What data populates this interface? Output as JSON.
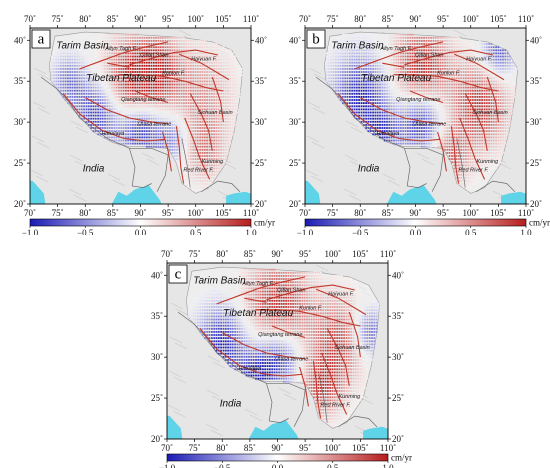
{
  "axes": {
    "x_ticks": [
      "70˚",
      "75˚",
      "80˚",
      "85˚",
      "90˚",
      "95˚",
      "100˚",
      "105˚",
      "110˚"
    ],
    "y_ticks": [
      "20˚",
      "25˚",
      "30˚",
      "35˚",
      "40˚"
    ],
    "lon_range": [
      70,
      110
    ],
    "lat_range": [
      20,
      41.5
    ]
  },
  "colorbar": {
    "ticks": [
      "−1.0",
      "−0.5",
      "0.0",
      "0.5",
      "1.0"
    ],
    "values": [
      -1.0,
      -0.5,
      0.0,
      0.5,
      1.0
    ],
    "unit": "cm/yr",
    "low_color": "#1a1ab5",
    "mid_color": "#ffffff",
    "high_color": "#b71d1d"
  },
  "colors": {
    "ocean": "#5fd3e8",
    "terrain": "#e6e6e6",
    "fault": "#c0392b",
    "boundary": "#6b6b6b"
  },
  "labels": {
    "big": [
      {
        "text": "Tarim Basin",
        "lon": 79.5,
        "lat": 39.0
      },
      {
        "text": "Tibetan Plateau",
        "lon": 86.5,
        "lat": 35.0
      },
      {
        "text": "India",
        "lon": 81.5,
        "lat": 24.0
      }
    ],
    "small": [
      {
        "text": "Altyn Tagh F.",
        "lon": 86.5,
        "lat": 38.8
      },
      {
        "text": "Qilian Shan",
        "lon": 92.5,
        "lat": 38.0
      },
      {
        "text": "Haiyuan F.",
        "lon": 101.5,
        "lat": 37.5
      },
      {
        "text": "Kunlun F.",
        "lon": 96.0,
        "lat": 35.8
      },
      {
        "text": "Qiangtang terrane",
        "lon": 90.5,
        "lat": 32.6
      },
      {
        "text": "Lhasa terrane",
        "lon": 92.5,
        "lat": 29.6
      },
      {
        "text": "Himalaya",
        "lon": 85.0,
        "lat": 28.4
      },
      {
        "text": "Sichuan Basin",
        "lon": 103.5,
        "lat": 31.0
      },
      {
        "text": "Kunming",
        "lon": 103.0,
        "lat": 25.0
      },
      {
        "text": "Red River F.",
        "lon": 100.5,
        "lat": 24.0
      }
    ]
  },
  "panels": [
    {
      "letter": "a",
      "fields": [
        {
          "lon": 88.5,
          "lat": 35.0,
          "amp": 1.0,
          "r": 5.0
        },
        {
          "lon": 93.0,
          "lat": 36.5,
          "amp": 0.8,
          "r": 4.0
        },
        {
          "lon": 100.5,
          "lat": 33.0,
          "amp": 0.5,
          "r": 6.0
        },
        {
          "lon": 101.5,
          "lat": 26.5,
          "amp": 0.5,
          "r": 3.5
        },
        {
          "lon": 82.0,
          "lat": 31.0,
          "amp": -0.9,
          "r": 4.0
        },
        {
          "lon": 90.0,
          "lat": 29.0,
          "amp": -1.0,
          "r": 4.0
        },
        {
          "lon": 96.0,
          "lat": 28.0,
          "amp": -0.6,
          "r": 3.0
        },
        {
          "lon": 77.0,
          "lat": 35.0,
          "amp": -0.6,
          "r": 3.0
        }
      ]
    },
    {
      "letter": "b",
      "fields": [
        {
          "lon": 91.0,
          "lat": 36.5,
          "amp": 1.0,
          "r": 5.0
        },
        {
          "lon": 101.5,
          "lat": 32.0,
          "amp": 0.9,
          "r": 5.0
        },
        {
          "lon": 96.0,
          "lat": 26.0,
          "amp": 0.7,
          "r": 3.5
        },
        {
          "lon": 80.0,
          "lat": 33.0,
          "amp": -1.0,
          "r": 5.0
        },
        {
          "lon": 91.0,
          "lat": 30.0,
          "amp": -1.0,
          "r": 4.0
        },
        {
          "lon": 84.0,
          "lat": 28.5,
          "amp": -0.7,
          "r": 3.0
        },
        {
          "lon": 105.0,
          "lat": 38.5,
          "amp": -0.8,
          "r": 3.0
        }
      ]
    },
    {
      "letter": "c",
      "fields": [
        {
          "lon": 90.0,
          "lat": 36.0,
          "amp": 1.0,
          "r": 5.5
        },
        {
          "lon": 101.0,
          "lat": 32.0,
          "amp": 0.8,
          "r": 5.0
        },
        {
          "lon": 98.0,
          "lat": 26.5,
          "amp": 0.8,
          "r": 3.5
        },
        {
          "lon": 80.0,
          "lat": 31.5,
          "amp": -1.0,
          "r": 4.5
        },
        {
          "lon": 90.0,
          "lat": 30.0,
          "amp": -1.0,
          "r": 4.0
        },
        {
          "lon": 86.0,
          "lat": 27.5,
          "amp": -0.8,
          "r": 3.0
        },
        {
          "lon": 106.5,
          "lat": 33.0,
          "amp": -0.8,
          "r": 3.0
        }
      ]
    }
  ]
}
